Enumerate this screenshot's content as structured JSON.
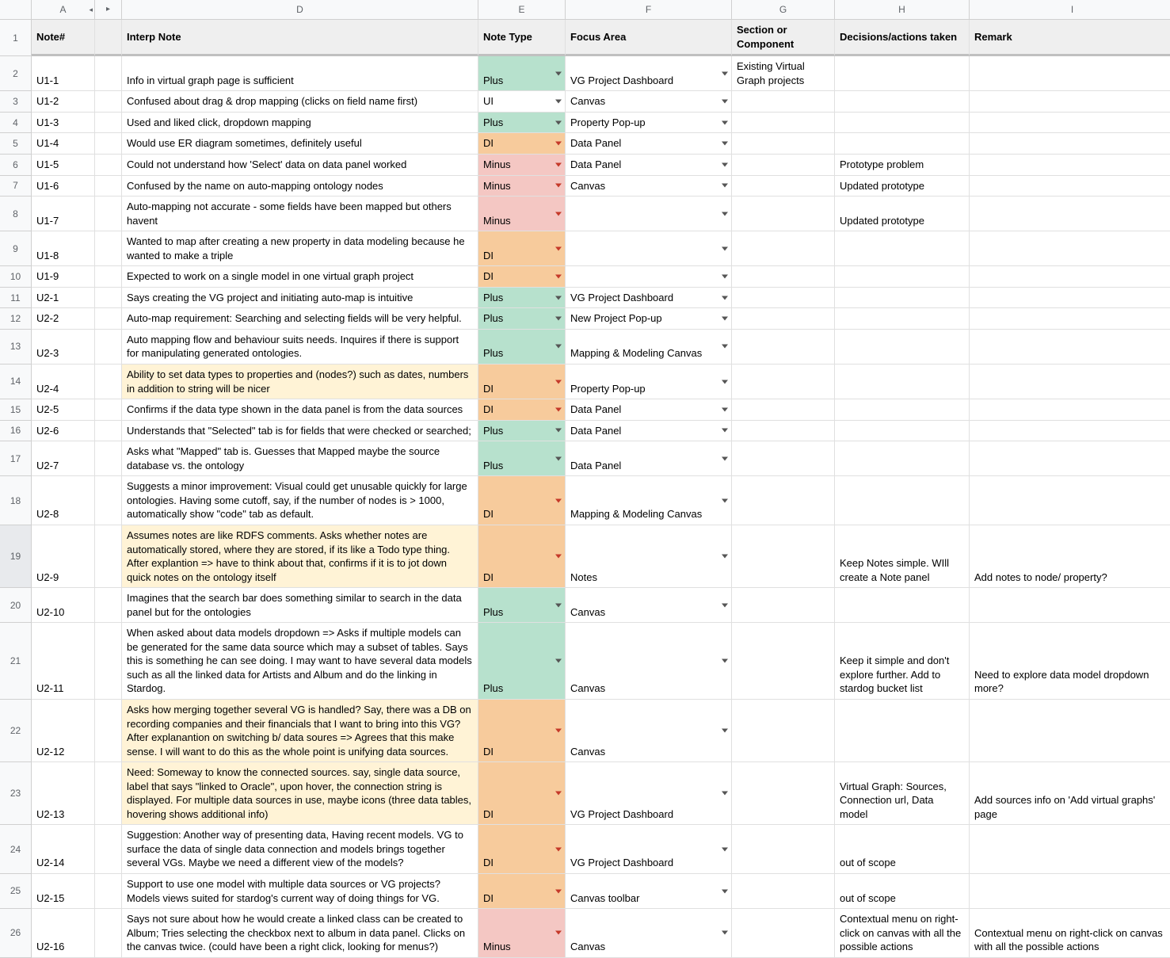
{
  "columns": {
    "A": "A",
    "hidden_indicator_left": "◂",
    "hidden_indicator_right": "▸",
    "D": "D",
    "E": "E",
    "F": "F",
    "G": "G",
    "H": "H",
    "I": "I"
  },
  "headers": {
    "note_num": "Note#",
    "interp": "Interp Note",
    "note_type": "Note Type",
    "focus": "Focus Area",
    "section": "Section or Component",
    "decisions": "Decisions/actions taken",
    "remark": "Remark"
  },
  "note_type_colors": {
    "Plus": "plus",
    "Minus": "minus",
    "DI": "di2",
    "UI": ""
  },
  "rows": [
    {
      "n": "2",
      "id": "U1-1",
      "note": "Info in virtual graph page is sufficient",
      "type": "Plus",
      "focus": "VG Project Dashboard",
      "section": "Existing Virtual Graph projects",
      "dec": "",
      "rem": ""
    },
    {
      "n": "3",
      "id": "U1-2",
      "note": "Confused about drag & drop mapping (clicks on field name first)",
      "type": "UI",
      "focus": "Canvas",
      "section": "",
      "dec": "",
      "rem": ""
    },
    {
      "n": "4",
      "id": "U1-3",
      "note": "Used and liked click, dropdown mapping",
      "type": "Plus",
      "focus": "Property Pop-up",
      "section": "",
      "dec": "",
      "rem": ""
    },
    {
      "n": "5",
      "id": "U1-4",
      "note": "Would use ER diagram sometimes, definitely useful",
      "type": "DI",
      "focus": "Data Panel",
      "section": "",
      "dec": "",
      "rem": ""
    },
    {
      "n": "6",
      "id": "U1-5",
      "note": "Could not understand how 'Select' data on data panel worked",
      "type": "Minus",
      "focus": "Data Panel",
      "section": "",
      "dec": "Prototype problem",
      "rem": ""
    },
    {
      "n": "7",
      "id": "U1-6",
      "note": "Confused by the name on auto-mapping ontology nodes",
      "type": "Minus",
      "focus": "Canvas",
      "section": "",
      "dec": "Updated prototype",
      "rem": ""
    },
    {
      "n": "8",
      "id": "U1-7",
      "note": "Auto-mapping not accurate - some fields have been mapped but others havent",
      "type": "Minus",
      "focus": "",
      "section": "",
      "dec": "Updated prototype",
      "rem": ""
    },
    {
      "n": "9",
      "id": "U1-8",
      "note": "Wanted to map after creating a new property in data modeling because he wanted to make a triple",
      "type": "DI",
      "focus": "",
      "section": "",
      "dec": "",
      "rem": ""
    },
    {
      "n": "10",
      "id": "U1-9",
      "note": "Expected to work on a single model in one virtual graph project",
      "type": "DI",
      "focus": "",
      "section": "",
      "dec": "",
      "rem": ""
    },
    {
      "n": "11",
      "id": "U2-1",
      "note": "Says creating the VG project and initiating auto-map is intuitive",
      "type": "Plus",
      "focus": "VG Project Dashboard",
      "section": "",
      "dec": "",
      "rem": ""
    },
    {
      "n": "12",
      "id": "U2-2",
      "note": "Auto-map requirement: Searching and selecting fields will be very helpful.",
      "type": "Plus",
      "focus": "New Project Pop-up",
      "section": "",
      "dec": "",
      "rem": ""
    },
    {
      "n": "13",
      "id": "U2-3",
      "note": "Auto mapping flow and behaviour suits needs. Inquires if there is support for manipulating generated ontologies.",
      "type": "Plus",
      "focus": "Mapping & Modeling Canvas",
      "section": "",
      "dec": "",
      "rem": ""
    },
    {
      "n": "14",
      "id": "U2-4",
      "note": "Ability to set data types to properties and (nodes?) such as dates, numbers in addition to string  will be nicer",
      "type": "DI",
      "focus": "Property Pop-up",
      "section": "",
      "dec": "",
      "rem": "",
      "hl": true
    },
    {
      "n": "15",
      "id": "U2-5",
      "note": "Confirms if the data type shown in the data panel is from the data sources",
      "type": "DI",
      "focus": "Data Panel",
      "section": "",
      "dec": "",
      "rem": ""
    },
    {
      "n": "16",
      "id": "U2-6",
      "note": "Understands that \"Selected\" tab is for fields that were checked or searched;",
      "type": "Plus",
      "focus": "Data Panel",
      "section": "",
      "dec": "",
      "rem": ""
    },
    {
      "n": "17",
      "id": "U2-7",
      "note": "Asks what \"Mapped\" tab is. Guesses that Mapped maybe the source database vs. the ontology",
      "type": "Plus",
      "focus": "Data Panel",
      "section": "",
      "dec": "",
      "rem": ""
    },
    {
      "n": "18",
      "id": "U2-8",
      "note": "Suggests a minor improvement: Visual could get unusable quickly for large ontologies. Having some cutoff, say, if the number of nodes is > 1000, automatically show \"code\" tab as default.",
      "type": "DI",
      "focus": "Mapping & Modeling Canvas",
      "section": "",
      "dec": "",
      "rem": ""
    },
    {
      "n": "19",
      "id": "U2-9",
      "note": "Assumes notes are like RDFS comments. Asks whether notes are automatically stored, where they are stored, if its like a Todo type thing. After explantion => have to think about that, confirms if it is to jot down quick notes on the ontology itself",
      "type": "DI",
      "focus": "Notes",
      "section": "",
      "dec": "Keep Notes simple. WIll create a Note panel",
      "rem": "Add notes to node/ property?",
      "hl": true,
      "sel": true
    },
    {
      "n": "20",
      "id": "U2-10",
      "note": "Imagines that the search bar does something similar to search in the data panel but for the ontologies",
      "type": "Plus",
      "focus": "Canvas",
      "section": "",
      "dec": "",
      "rem": ""
    },
    {
      "n": "21",
      "id": "U2-11",
      "note": "When asked about data models dropdown => Asks if multiple models can be generated for the same data source which may a subset of tables. Says this is something he can see doing. I may want to have several data models such as all the linked data for Artists and Album and do the linking in Stardog.",
      "type": "Plus",
      "focus": "Canvas",
      "section": "",
      "dec": "Keep it simple and don't explore further. Add to stardog bucket list",
      "rem": "Need to explore data model dropdown more?"
    },
    {
      "n": "22",
      "id": "U2-12",
      "note": "Asks how merging together several VG is handled? Say, there was a DB on recording companies and their financials that I want to bring into this VG? After explanantion on switching b/ data soures => Agrees that this make sense. I will want to do this as the whole point is unifying data sources.",
      "type": "DI",
      "focus": "Canvas",
      "section": "",
      "dec": "",
      "rem": "",
      "hl": true
    },
    {
      "n": "23",
      "id": "U2-13",
      "note": "Need: Someway to know the connected sources. say, single data source, label that says \"linked to Oracle\", upon hover, the connection string is displayed. For multiple data sources in use, maybe icons (three data tables, hovering shows additional info)",
      "type": "DI",
      "focus": "VG Project Dashboard",
      "section": "",
      "dec": "Virtual Graph: Sources, Connection url, Data model",
      "rem": "Add sources info on 'Add virtual graphs' page",
      "hl": true
    },
    {
      "n": "24",
      "id": "U2-14",
      "note": "Suggestion: Another way of presenting data, Having recent models. VG to surface the data of single data connection and models brings together several VGs. Maybe we need a different view of the models?",
      "type": "DI",
      "focus": "VG Project Dashboard",
      "section": "",
      "dec": "out of scope",
      "rem": ""
    },
    {
      "n": "25",
      "id": "U2-15",
      "note": "Support to use one model with multiple data sources or VG projects? Models views suited for stardog's current way of doing things for VG.",
      "type": "DI",
      "focus": "Canvas toolbar",
      "section": "",
      "dec": "out of scope",
      "rem": ""
    },
    {
      "n": "26",
      "id": "U2-16",
      "note": "Says not sure about how he would create a linked class can be created to Album; Tries selecting the checkbox next to album in data panel. Clicks on the canvas twice. (could have been a right click, looking for menus?)",
      "type": "Minus",
      "focus": "Canvas",
      "section": "",
      "dec": "Contextual menu on right-click on canvas with all the possible actions",
      "rem": "Contextual menu on right-click on canvas with all the possible actions"
    }
  ]
}
